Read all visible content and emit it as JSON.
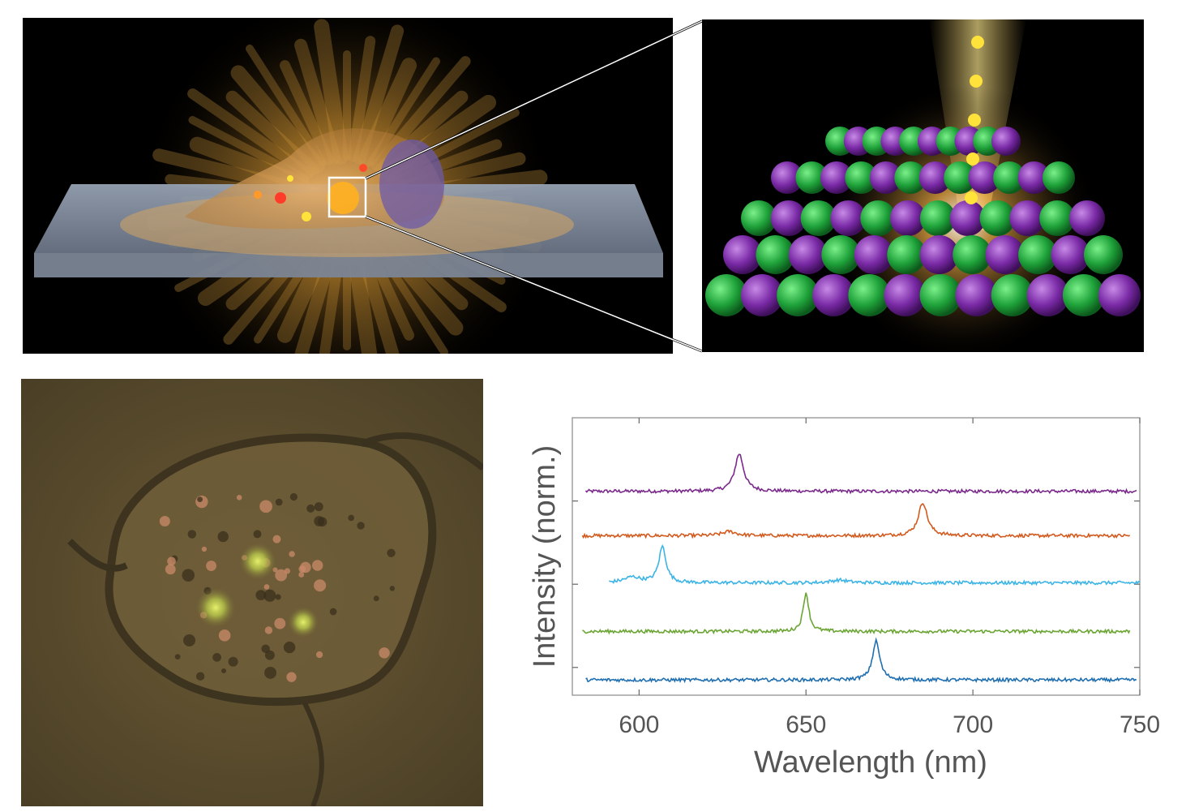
{
  "figure": {
    "panels": [
      {
        "name": "cell-illustration",
        "kind": "illustration"
      },
      {
        "name": "lattice-illustration",
        "kind": "illustration"
      },
      {
        "name": "microscopy-image",
        "kind": "photograph"
      },
      {
        "name": "spectra-chart",
        "kind": "chart"
      }
    ]
  },
  "colors": {
    "violet": "#7b2a8c",
    "orange": "#d35a1e",
    "cyan": "#3cb4e6",
    "green": "#6ba534",
    "blue": "#1f6fb0",
    "axis": "#666666",
    "lattice_green": "#1fa23a",
    "lattice_purple": "#7a2aa6"
  },
  "chart_data": {
    "type": "line",
    "title": "",
    "xlabel": "Wavelength (nm)",
    "ylabel": "Intensity (norm.)",
    "xlim": [
      580,
      750
    ],
    "xticks": [
      600,
      650,
      700,
      750
    ],
    "ylim": [
      0,
      1
    ],
    "y_ticks_labeled": false,
    "grid": false,
    "legend": "none",
    "series": [
      {
        "color": "violet",
        "x_range": [
          584,
          749
        ],
        "baseline": 0.735,
        "peaks": [
          {
            "x": 630,
            "height": 0.135,
            "width": 1.6
          }
        ]
      },
      {
        "color": "orange",
        "x_range": [
          583,
          747
        ],
        "baseline": 0.575,
        "peaks": [
          {
            "x": 627,
            "height": 0.015,
            "width": 2.5
          },
          {
            "x": 685,
            "height": 0.12,
            "width": 1.6
          }
        ]
      },
      {
        "color": "cyan",
        "x_range": [
          591,
          750
        ],
        "baseline": 0.405,
        "peaks": [
          {
            "x": 598,
            "height": 0.02,
            "width": 3
          },
          {
            "x": 607,
            "height": 0.13,
            "width": 1.3
          },
          {
            "x": 660,
            "height": 0.01,
            "width": 3
          }
        ]
      },
      {
        "color": "green",
        "x_range": [
          583,
          747
        ],
        "baseline": 0.23,
        "peaks": [
          {
            "x": 650,
            "height": 0.14,
            "width": 1.0
          }
        ]
      },
      {
        "color": "blue",
        "x_range": [
          584,
          749
        ],
        "baseline": 0.055,
        "peaks": [
          {
            "x": 671,
            "height": 0.14,
            "width": 1.3
          }
        ]
      }
    ]
  }
}
